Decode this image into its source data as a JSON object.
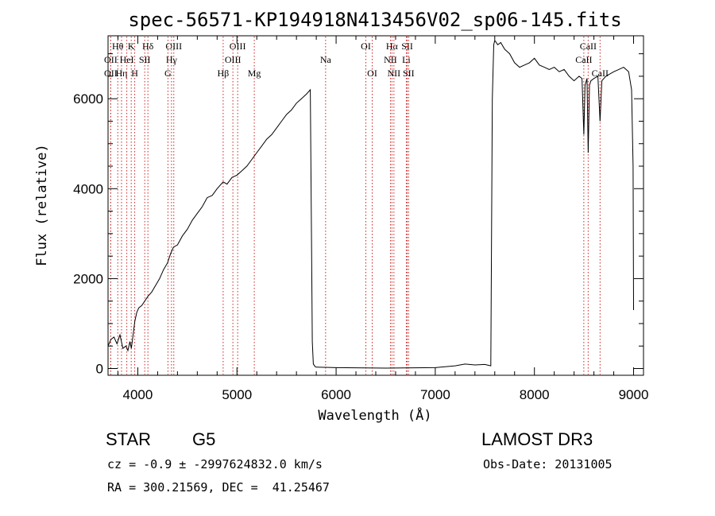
{
  "chart_data": {
    "type": "line",
    "title": "spec-56571-KP194918N413456V02_sp06-145.fits",
    "xlabel": "Wavelength (Å)",
    "ylabel": "Flux (relative)",
    "xlim": [
      3700,
      9100
    ],
    "ylim": [
      -150,
      7400
    ],
    "x_ticks": [
      4000,
      5000,
      6000,
      7000,
      8000,
      9000
    ],
    "y_ticks": [
      0,
      2000,
      4000,
      6000
    ],
    "line_color": "#000000",
    "marker_color": "#cc2222",
    "series": [
      {
        "name": "flux",
        "x": [
          3700,
          3730,
          3760,
          3790,
          3820,
          3850,
          3880,
          3900,
          3920,
          3935,
          3950,
          3970,
          3990,
          4010,
          4040,
          4070,
          4100,
          4140,
          4180,
          4220,
          4260,
          4300,
          4330,
          4360,
          4400,
          4450,
          4500,
          4550,
          4600,
          4650,
          4700,
          4750,
          4800,
          4861,
          4900,
          4950,
          5000,
          5050,
          5100,
          5150,
          5200,
          5250,
          5300,
          5350,
          5400,
          5450,
          5500,
          5550,
          5600,
          5650,
          5700,
          5740,
          5755,
          5760,
          5770,
          5790,
          5800,
          6000,
          6500,
          7000,
          7200,
          7300,
          7400,
          7500,
          7560,
          7575,
          7590,
          7600,
          7630,
          7660,
          7700,
          7750,
          7800,
          7850,
          7900,
          7950,
          8000,
          8050,
          8100,
          8150,
          8200,
          8250,
          8300,
          8350,
          8400,
          8450,
          8480,
          8498,
          8510,
          8530,
          8542,
          8555,
          8570,
          8600,
          8640,
          8662,
          8680,
          8720,
          8760,
          8800,
          8850,
          8900,
          8950,
          8980,
          8995,
          9000
        ],
        "values": [
          500,
          650,
          700,
          550,
          750,
          450,
          500,
          400,
          600,
          450,
          700,
          1050,
          1250,
          1350,
          1400,
          1500,
          1600,
          1700,
          1850,
          2000,
          2200,
          2350,
          2550,
          2700,
          2750,
          2950,
          3100,
          3300,
          3450,
          3600,
          3800,
          3850,
          4000,
          4150,
          4100,
          4250,
          4300,
          4400,
          4500,
          4650,
          4800,
          4950,
          5100,
          5200,
          5350,
          5500,
          5650,
          5750,
          5900,
          6000,
          6100,
          6200,
          2000,
          600,
          100,
          40,
          30,
          20,
          10,
          20,
          60,
          100,
          80,
          90,
          60,
          6000,
          7200,
          7300,
          7200,
          7250,
          7100,
          7000,
          6800,
          6700,
          6750,
          6800,
          6900,
          6750,
          6700,
          6650,
          6700,
          6600,
          6650,
          6500,
          6400,
          6500,
          6450,
          5200,
          6300,
          6450,
          4800,
          6300,
          6400,
          6450,
          6500,
          5500,
          6400,
          6500,
          6550,
          6600,
          6650,
          6700,
          6600,
          6200,
          4500,
          1300
        ]
      }
    ],
    "line_markers": [
      {
        "label": "Hθ",
        "wavelength": 3798,
        "row": 1
      },
      {
        "label": "OII",
        "wavelength": 3727,
        "row": 2
      },
      {
        "label": "OII",
        "wavelength": 3727,
        "row": 3
      },
      {
        "label": "Hη",
        "wavelength": 3836,
        "row": 3
      },
      {
        "label": "K",
        "wavelength": 3934,
        "row": 1
      },
      {
        "label": "HeI",
        "wavelength": 3889,
        "row": 2
      },
      {
        "label": "H",
        "wavelength": 3969,
        "row": 3
      },
      {
        "label": "Hδ",
        "wavelength": 4102,
        "row": 1
      },
      {
        "label": "SII",
        "wavelength": 4070,
        "row": 2
      },
      {
        "label": "OIII",
        "wavelength": 4363,
        "row": 1
      },
      {
        "label": "Hγ",
        "wavelength": 4340,
        "row": 2
      },
      {
        "label": "G",
        "wavelength": 4304,
        "row": 3
      },
      {
        "label": "Hβ",
        "wavelength": 4861,
        "row": 3
      },
      {
        "label": "OIII",
        "wavelength": 5007,
        "row": 1
      },
      {
        "label": "OIII",
        "wavelength": 4959,
        "row": 2
      },
      {
        "label": "Mg",
        "wavelength": 5175,
        "row": 3
      },
      {
        "label": "Na",
        "wavelength": 5894,
        "row": 2
      },
      {
        "label": "OI",
        "wavelength": 6300,
        "row": 1
      },
      {
        "label": "OI",
        "wavelength": 6364,
        "row": 3
      },
      {
        "label": "Hα",
        "wavelength": 6563,
        "row": 1
      },
      {
        "label": "NII",
        "wavelength": 6548,
        "row": 2
      },
      {
        "label": "NII",
        "wavelength": 6583,
        "row": 3
      },
      {
        "label": "SII",
        "wavelength": 6717,
        "row": 1
      },
      {
        "label": "Li",
        "wavelength": 6708,
        "row": 2
      },
      {
        "label": "SII",
        "wavelength": 6731,
        "row": 3
      },
      {
        "label": "CaII",
        "wavelength": 8542,
        "row": 1
      },
      {
        "label": "CaII",
        "wavelength": 8498,
        "row": 2
      },
      {
        "label": "CaII",
        "wavelength": 8662,
        "row": 3
      }
    ]
  },
  "info": {
    "object_class": "STAR",
    "subclass": "G5",
    "survey": "LAMOST DR3",
    "redshift_line": "cz = -0.9 ± -2997624832.0 km/s",
    "obs_date": "Obs-Date: 20131005",
    "coords": "RA = 300.21569, DEC =  41.25467"
  }
}
